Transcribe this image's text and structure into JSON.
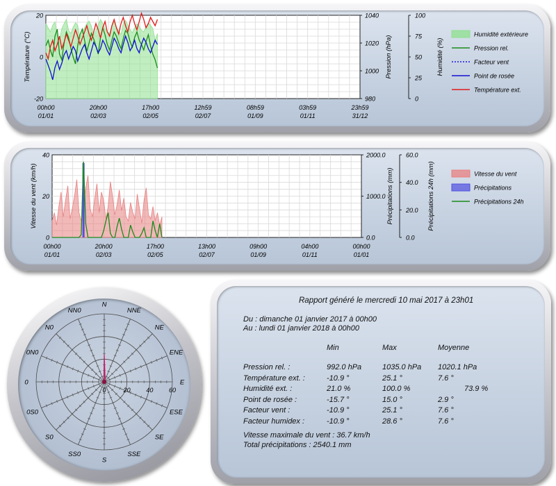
{
  "chart_data": [
    {
      "type": "line",
      "ylabel": "Température (°C)",
      "ylim": [
        -20,
        20
      ],
      "yticks": [
        "20",
        "0",
        "-20"
      ],
      "y2label": "Pression (hPa)",
      "y2lim": [
        980,
        1040
      ],
      "y2ticks": [
        "1040",
        "1020",
        "1000",
        "980"
      ],
      "y3label": "Humidité (%)",
      "y3lim": [
        0,
        100
      ],
      "y3ticks": [
        "100",
        "75",
        "50",
        "25",
        "0"
      ],
      "xticks": [
        {
          "top": "00h00",
          "bottom": "01/01"
        },
        {
          "top": "20h00",
          "bottom": "02/03"
        },
        {
          "top": "17h00",
          "bottom": "02/05"
        },
        {
          "top": "12h59",
          "bottom": "02/07"
        },
        {
          "top": "08h59",
          "bottom": "01/09"
        },
        {
          "top": "03h59",
          "bottom": "01/11"
        },
        {
          "top": "23h59",
          "bottom": "31/12"
        }
      ],
      "grid": true,
      "legend_position": "right",
      "series": [
        {
          "name": "Humidité extérieure",
          "color": "#8ee08e",
          "axis": "humidity",
          "kind": "area",
          "values": [
            90,
            85,
            80,
            88,
            92,
            75,
            70,
            84,
            90,
            95,
            82,
            78,
            86,
            91,
            88,
            72,
            80,
            85,
            90,
            93,
            87,
            76,
            82,
            88,
            95,
            90,
            84,
            80,
            78,
            88,
            92,
            86,
            81,
            77,
            90,
            94,
            88,
            83,
            79,
            85,
            90,
            87,
            82,
            80,
            86,
            91,
            88,
            84,
            70,
            78
          ]
        },
        {
          "name": "Pression rel.",
          "color": "#1a8a1a",
          "axis": "pressure",
          "kind": "line",
          "values": [
            1018,
            1022,
            1015,
            1010,
            1025,
            1030,
            1012,
            1008,
            1020,
            1028,
            1024,
            1016,
            1010,
            1005,
            1018,
            1026,
            1030,
            1022,
            1014,
            1020,
            1027,
            1023,
            1018,
            1012,
            1024,
            1031,
            1026,
            1019,
            1015,
            1022,
            1028,
            1025,
            1020,
            1016,
            1023,
            1029,
            1027,
            1021,
            1017,
            1024,
            1028,
            1022,
            1019,
            1015,
            1021,
            1026,
            1018,
            1012,
            1008,
            1002
          ]
        },
        {
          "name": "Facteur vent",
          "color": "#1818e0",
          "axis": "temp",
          "kind": "dotted",
          "values": []
        },
        {
          "name": "Point de rosée",
          "color": "#1010d0",
          "axis": "temp",
          "kind": "line",
          "values": [
            -1,
            -4,
            -7,
            -11,
            -5,
            -2,
            -6,
            -3,
            1,
            3,
            -1,
            2,
            5,
            3,
            -2,
            1,
            4,
            6,
            2,
            -1,
            3,
            7,
            5,
            2,
            4,
            8,
            6,
            3,
            1,
            5,
            9,
            7,
            4,
            2,
            6,
            10,
            7,
            3,
            5,
            8,
            4,
            2,
            6,
            9,
            7,
            4,
            2,
            5,
            8,
            6
          ]
        },
        {
          "name": "Température ext.",
          "color": "#e01a1a",
          "axis": "temp",
          "kind": "line",
          "values": [
            2,
            -1,
            5,
            8,
            3,
            6,
            10,
            4,
            7,
            11,
            8,
            5,
            9,
            13,
            10,
            6,
            9,
            12,
            15,
            11,
            8,
            12,
            16,
            13,
            9,
            14,
            17,
            12,
            10,
            15,
            18,
            14,
            11,
            16,
            19,
            15,
            12,
            17,
            20,
            16,
            13,
            17,
            21,
            18,
            14,
            16,
            19,
            17,
            15,
            18
          ]
        }
      ]
    },
    {
      "type": "bar",
      "ylabel": "Vitesse du vent (km/h)",
      "ylim": [
        0,
        40
      ],
      "yticks": [
        "40",
        "20",
        "0"
      ],
      "y2label": "Précipitations (mm)",
      "y2lim": [
        0,
        2000
      ],
      "y2ticks": [
        "2000.0",
        "1000.0",
        "0.0"
      ],
      "y3label": "Précipitations 24h (mm)",
      "y3lim": [
        0,
        60
      ],
      "y3ticks": [
        "60.0",
        "40.0",
        "20.0",
        "0.0"
      ],
      "xticks": [
        {
          "top": "00h00",
          "bottom": "01/01"
        },
        {
          "top": "20h00",
          "bottom": "02/03"
        },
        {
          "top": "17h00",
          "bottom": "02/05"
        },
        {
          "top": "13h00",
          "bottom": "02/07"
        },
        {
          "top": "09h00",
          "bottom": "01/09"
        },
        {
          "top": "04h00",
          "bottom": "01/11"
        },
        {
          "top": "00h00",
          "bottom": "01/01"
        }
      ],
      "grid": true,
      "legend_position": "right",
      "series": [
        {
          "name": "Vitesse du vent",
          "color": "#e88080",
          "kind": "area",
          "values": [
            8,
            12,
            6,
            15,
            22,
            10,
            18,
            25,
            9,
            14,
            20,
            28,
            12,
            8,
            16,
            24,
            30,
            14,
            10,
            19,
            26,
            12,
            22,
            18,
            9,
            15,
            27,
            20,
            11,
            16,
            23,
            13,
            19,
            10,
            8,
            17,
            12,
            9,
            21,
            14,
            7,
            18,
            24,
            11,
            9,
            15,
            8,
            12,
            6,
            10
          ]
        },
        {
          "name": "Précipitations",
          "color": "#5050e0",
          "kind": "bar",
          "values": [
            0,
            0,
            0,
            0,
            0,
            0,
            0,
            0,
            0,
            0,
            0,
            0,
            0,
            0,
            1800,
            0,
            0,
            0,
            0,
            0,
            0,
            0,
            0,
            0,
            0,
            0,
            0,
            0,
            0,
            0,
            0,
            0,
            0,
            0,
            0,
            0,
            0,
            0,
            0,
            0,
            0,
            0,
            0,
            0,
            0,
            0,
            0,
            0,
            0,
            0
          ]
        },
        {
          "name": "Précipitations 24h",
          "color": "#1a8a1a",
          "kind": "line",
          "values": [
            0,
            0,
            0,
            0,
            0,
            0,
            0,
            0,
            0,
            0,
            0,
            0,
            0,
            2,
            55,
            10,
            0,
            0,
            0,
            0,
            0,
            0,
            0,
            5,
            12,
            18,
            3,
            0,
            0,
            8,
            14,
            6,
            0,
            0,
            0,
            9,
            4,
            0,
            0,
            0,
            3,
            7,
            0,
            0,
            0,
            12,
            5,
            0,
            10,
            0
          ]
        }
      ]
    },
    {
      "type": "radar",
      "directions": [
        "N",
        "NNE",
        "NE",
        "ENE",
        "E",
        "ESE",
        "SE",
        "SSE",
        "S",
        "SS0",
        "S0",
        "0S0",
        "0",
        "0N0",
        "N0",
        "NN0"
      ],
      "radial_ticks": [
        "0",
        "20",
        "40",
        "60"
      ],
      "rmax": 60,
      "color": "#c0206a",
      "values": [
        24,
        2,
        1,
        1,
        1,
        1,
        1,
        1,
        1,
        1,
        1,
        1,
        1,
        1,
        1,
        1
      ]
    }
  ],
  "report": {
    "title": "Rapport généré le mercredi 10 mai 2017 à 23h01",
    "from": "Du : dimanche 01 janvier 2017 à 00h00",
    "to": "Au : lundi 01 janvier 2018 à 00h00",
    "headers": {
      "min": "Min",
      "max": "Max",
      "avg": "Moyenne"
    },
    "rows": [
      {
        "label": "Pression rel. :",
        "min": "992.0 hPa",
        "max": "1035.0 hPa",
        "avg": "1020.1 hPa"
      },
      {
        "label": "Température ext. :",
        "min": "-10.9 °",
        "max": "25.1 °",
        "avg": "7.6 °"
      },
      {
        "label": "Humidité ext. :",
        "min": "21.0 %",
        "max": "100.0 %",
        "avg": "73.9 %"
      },
      {
        "label": "Point de rosée :",
        "min": "-15.7 °",
        "max": "15.0 °",
        "avg": "2.9 °"
      },
      {
        "label": "Facteur vent :",
        "min": "-10.9 °",
        "max": "25.1 °",
        "avg": "7.6 °"
      },
      {
        "label": "Facteur humidex :",
        "min": "-10.9 °",
        "max": "28.6 °",
        "avg": "7.6 °"
      }
    ],
    "max_wind": "Vitesse maximale du vent : 36.7 km/h",
    "total_rain": "Total précipitations : 2540.1 mm"
  }
}
